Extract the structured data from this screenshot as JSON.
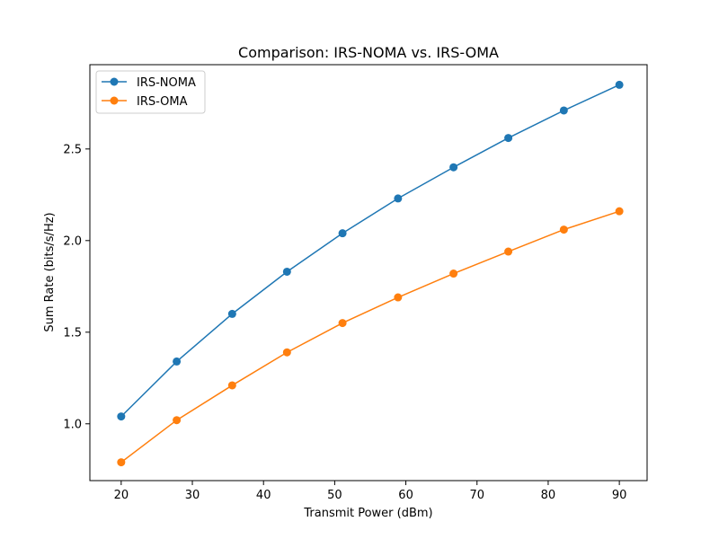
{
  "chart_data": {
    "type": "line",
    "title": "Comparison: IRS-NOMA vs. IRS-OMA",
    "xlabel": "Transmit Power (dBm)",
    "ylabel": "Sum Rate (bits/s/Hz)",
    "xlim": [
      15.6,
      93.9
    ],
    "ylim": [
      0.69,
      2.96
    ],
    "xticks": [
      20,
      30,
      40,
      50,
      60,
      70,
      80,
      90
    ],
    "yticks": [
      1.0,
      1.5,
      2.0,
      2.5
    ],
    "ytick_labels": [
      "1.0",
      "1.5",
      "2.0",
      "2.5"
    ],
    "grid": false,
    "legend_position": "top-left",
    "x": [
      20,
      27.8,
      35.6,
      43.3,
      51.1,
      58.9,
      66.7,
      74.4,
      82.2,
      90
    ],
    "series": [
      {
        "name": "IRS-NOMA",
        "color": "#1f77b4",
        "values": [
          1.04,
          1.34,
          1.6,
          1.83,
          2.04,
          2.23,
          2.4,
          2.56,
          2.71,
          2.85
        ]
      },
      {
        "name": "IRS-OMA",
        "color": "#ff7f0e",
        "values": [
          0.79,
          1.02,
          1.21,
          1.39,
          1.55,
          1.69,
          1.82,
          1.94,
          2.06,
          2.16
        ]
      }
    ]
  }
}
